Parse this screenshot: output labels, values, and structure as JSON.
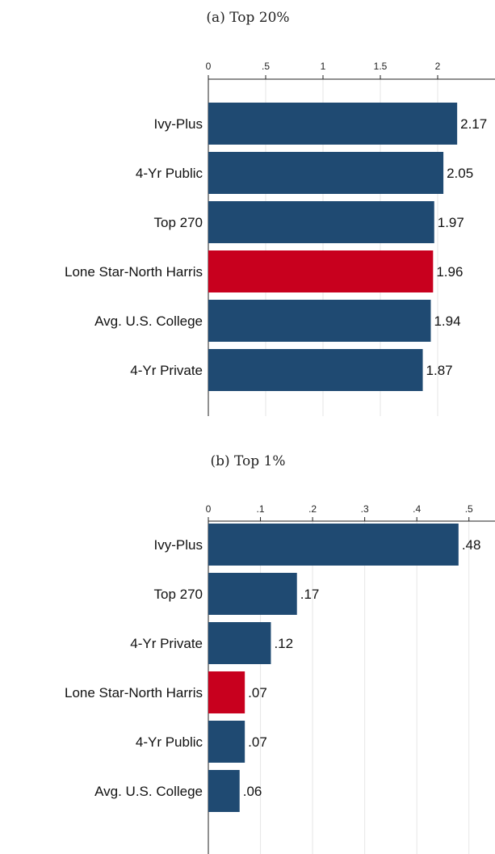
{
  "colors": {
    "default_bar": "#1f4a72",
    "highlight_bar": "#c8001e"
  },
  "chart_data": [
    {
      "type": "bar",
      "orientation": "horizontal",
      "title": "(a) Top 20%",
      "categories": [
        "Ivy-Plus",
        "4-Yr Public",
        "Top 270",
        "Lone Star-North Harris",
        "Avg. U.S. College",
        "4-Yr Private"
      ],
      "values": [
        2.17,
        2.05,
        1.97,
        1.96,
        1.94,
        1.87
      ],
      "value_labels": [
        "2.17",
        "2.05",
        "1.97",
        "1.96",
        "1.94",
        "1.87"
      ],
      "highlight": "Lone Star-North Harris",
      "xlim": [
        0,
        2.5
      ],
      "xticks": [
        0,
        0.5,
        1,
        1.5,
        2
      ],
      "xtick_labels": [
        "0",
        ".5",
        "1",
        "1.5",
        "2"
      ],
      "grid": true
    },
    {
      "type": "bar",
      "orientation": "horizontal",
      "title": "(b) Top 1%",
      "categories": [
        "Ivy-Plus",
        "Top 270",
        "4-Yr Private",
        "Lone Star-North Harris",
        "4-Yr Public",
        "Avg. U.S. College"
      ],
      "values": [
        0.48,
        0.17,
        0.12,
        0.07,
        0.07,
        0.06
      ],
      "value_labels": [
        ".48",
        ".17",
        ".12",
        ".07",
        ".07",
        ".06"
      ],
      "highlight": "Lone Star-North Harris",
      "xlim": [
        0,
        0.55
      ],
      "xticks": [
        0,
        0.1,
        0.2,
        0.3,
        0.4,
        0.5
      ],
      "xtick_labels": [
        "0",
        ".1",
        ".2",
        ".3",
        ".4",
        ".5"
      ],
      "grid": true
    }
  ]
}
